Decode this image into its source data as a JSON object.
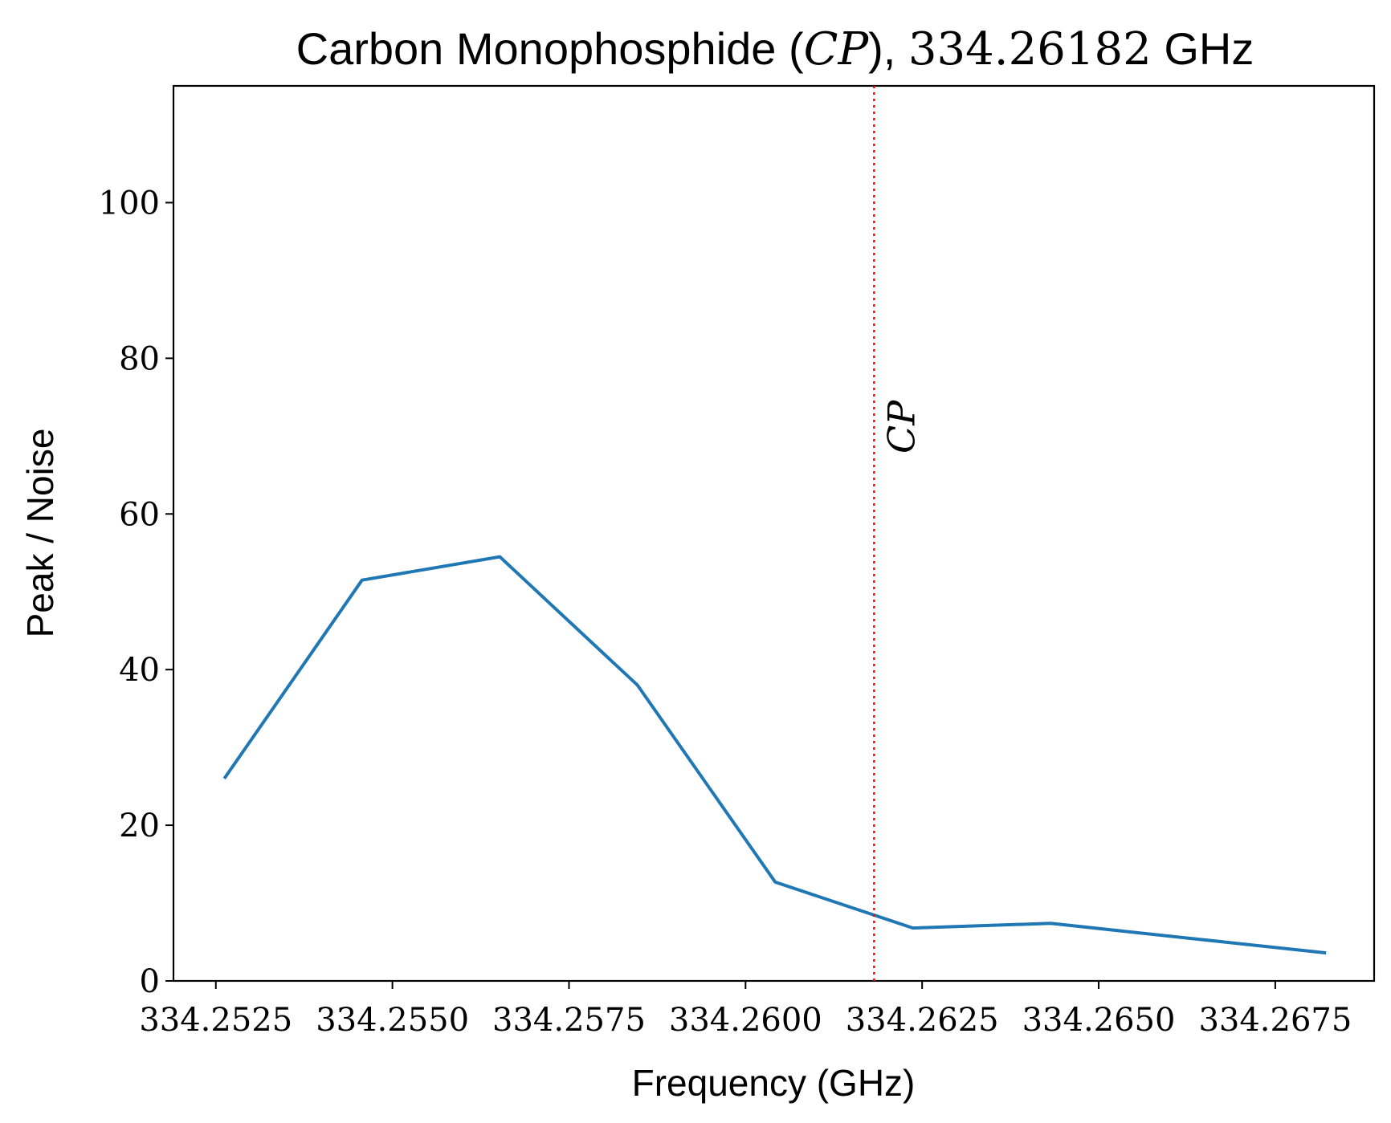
{
  "chart_data": {
    "type": "line",
    "title": {
      "prefix": "Carbon Monophosphide (",
      "molecule": "CP",
      "middle": "), ",
      "frequency": "334.26182",
      "suffix": " GHz"
    },
    "xlabel": "Frequency (GHz)",
    "ylabel": "Peak / Noise",
    "xlim": [
      334.2519,
      334.2689
    ],
    "ylim": [
      0,
      115
    ],
    "xticks": [
      334.2525,
      334.255,
      334.2575,
      334.26,
      334.2625,
      334.265,
      334.2675
    ],
    "xtick_labels": [
      "334.2525",
      "334.2550",
      "334.2575",
      "334.2600",
      "334.2625",
      "334.2650",
      "334.2675"
    ],
    "yticks": [
      0,
      20,
      40,
      60,
      80,
      100
    ],
    "ytick_labels": [
      "0",
      "20",
      "40",
      "60",
      "80",
      "100"
    ],
    "grid": false,
    "series": [
      {
        "color": "#1f77b4",
        "x": [
          334.25262,
          334.25457,
          334.25652,
          334.25847,
          334.26042,
          334.26237,
          334.26432,
          334.26627,
          334.26822
        ],
        "y": [
          26.0,
          51.5,
          54.5,
          38.0,
          12.7,
          6.8,
          7.4,
          5.5,
          3.6
        ]
      }
    ],
    "reference_line": {
      "x": 334.26182,
      "color": "#ff0000",
      "style": "dotted",
      "label": "CP"
    }
  }
}
